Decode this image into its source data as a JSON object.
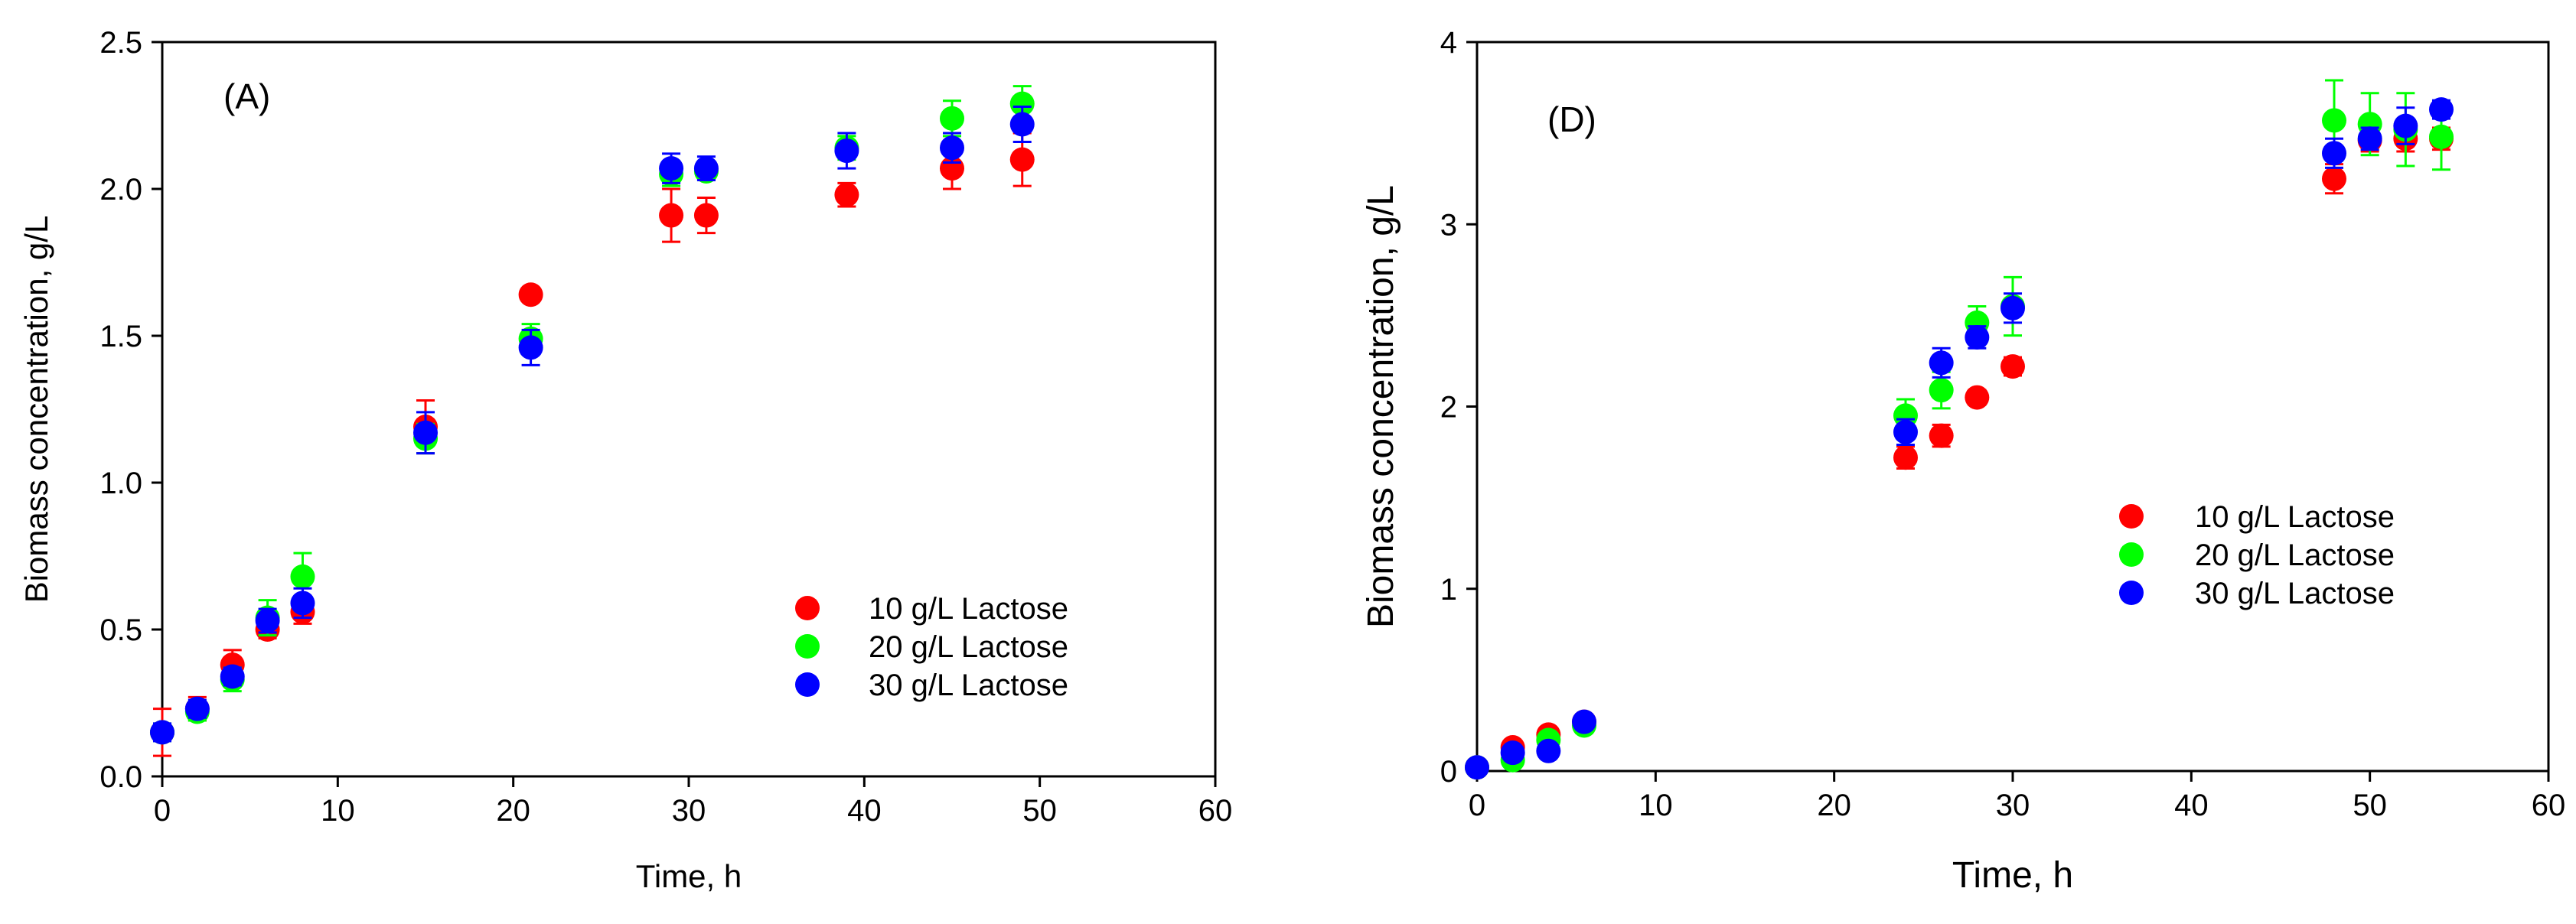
{
  "chart_data": [
    {
      "type": "scatter",
      "panel_label": "(A)",
      "xlabel": "Time, h",
      "ylabel": "Biomass concentration, g/L",
      "xlim": [
        0,
        60
      ],
      "ylim": [
        0,
        2.5
      ],
      "x_ticks": [
        "0",
        "10",
        "20",
        "30",
        "40",
        "50",
        "60"
      ],
      "y_ticks": [
        "0.0",
        "0.5",
        "1.0",
        "1.5",
        "2.0",
        "2.5"
      ],
      "legend_position": "center-right",
      "grid": false,
      "series": [
        {
          "name": "10 g/L Lactose",
          "color": "#ff0000",
          "x": [
            0,
            2,
            4,
            6,
            8,
            15,
            21,
            29,
            31,
            39,
            45,
            49
          ],
          "y": [
            0.15,
            0.23,
            0.38,
            0.5,
            0.56,
            1.19,
            1.64,
            1.91,
            1.91,
            1.98,
            2.07,
            2.1
          ],
          "err": [
            0.08,
            0.04,
            0.05,
            0.03,
            0.04,
            0.09,
            0.02,
            0.09,
            0.06,
            0.04,
            0.07,
            0.09
          ]
        },
        {
          "name": "20 g/L Lactose",
          "color": "#00ff00",
          "x": [
            0,
            2,
            4,
            6,
            8,
            15,
            21,
            29,
            31,
            39,
            45,
            49
          ],
          "y": [
            0.15,
            0.22,
            0.33,
            0.54,
            0.68,
            1.15,
            1.49,
            2.05,
            2.06,
            2.14,
            2.24,
            2.29
          ],
          "err": [
            0.03,
            0.03,
            0.04,
            0.06,
            0.08,
            0.05,
            0.05,
            0.04,
            0.03,
            0.04,
            0.06,
            0.06
          ]
        },
        {
          "name": "30 g/L Lactose",
          "color": "#0000ff",
          "x": [
            0,
            2,
            4,
            6,
            8,
            15,
            21,
            29,
            31,
            39,
            45,
            49
          ],
          "y": [
            0.15,
            0.23,
            0.34,
            0.53,
            0.59,
            1.17,
            1.46,
            2.07,
            2.07,
            2.13,
            2.14,
            2.22
          ],
          "err": [
            0.03,
            0.03,
            0.03,
            0.04,
            0.05,
            0.07,
            0.06,
            0.05,
            0.04,
            0.06,
            0.05,
            0.06
          ]
        }
      ]
    },
    {
      "type": "scatter",
      "panel_label": "(D)",
      "xlabel": "Time, h",
      "ylabel": "Biomass concentration, g/L",
      "xlim": [
        0,
        60
      ],
      "ylim": [
        0,
        4
      ],
      "x_ticks": [
        "0",
        "10",
        "20",
        "30",
        "40",
        "50",
        "60"
      ],
      "y_ticks": [
        "0",
        "1",
        "2",
        "3",
        "4"
      ],
      "legend_position": "center-right",
      "grid": false,
      "series": [
        {
          "name": "10 g/L Lactose",
          "color": "#ff0000",
          "x": [
            0,
            2,
            4,
            6,
            24,
            26,
            28,
            30,
            48,
            50,
            52,
            54
          ],
          "y": [
            0.02,
            0.13,
            0.2,
            0.27,
            1.72,
            1.84,
            2.05,
            2.22,
            3.25,
            3.46,
            3.47,
            3.47
          ],
          "err": [
            0.02,
            0.03,
            0.03,
            0.04,
            0.06,
            0.06,
            0.04,
            0.05,
            0.08,
            0.06,
            0.07,
            0.06
          ]
        },
        {
          "name": "20 g/L Lactose",
          "color": "#00ff00",
          "x": [
            0,
            2,
            4,
            6,
            24,
            26,
            28,
            30,
            48,
            50,
            52,
            54
          ],
          "y": [
            0.02,
            0.06,
            0.17,
            0.25,
            1.95,
            2.09,
            2.46,
            2.55,
            3.57,
            3.55,
            3.52,
            3.48
          ],
          "err": [
            0.02,
            0.03,
            0.03,
            0.04,
            0.09,
            0.1,
            0.09,
            0.16,
            0.22,
            0.17,
            0.2,
            0.18
          ]
        },
        {
          "name": "30 g/L Lactose",
          "color": "#0000ff",
          "x": [
            0,
            2,
            4,
            6,
            24,
            26,
            28,
            30,
            48,
            50,
            52,
            54
          ],
          "y": [
            0.02,
            0.1,
            0.11,
            0.27,
            1.86,
            2.24,
            2.38,
            2.54,
            3.39,
            3.47,
            3.54,
            3.63
          ],
          "err": [
            0.02,
            0.03,
            0.03,
            0.04,
            0.07,
            0.08,
            0.06,
            0.08,
            0.08,
            0.06,
            0.1,
            0.05
          ]
        }
      ]
    }
  ]
}
